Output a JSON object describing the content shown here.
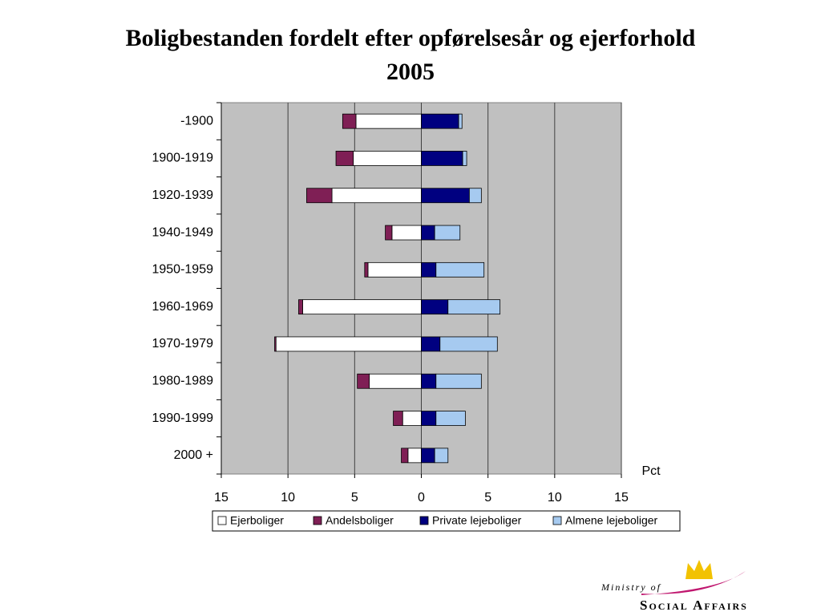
{
  "chart_data": {
    "type": "butterfly_bar",
    "title": "Boligbestanden fordelt efter opførelsesår og ejerforhold",
    "subtitle": "2005",
    "x_label": "Pct",
    "categories": [
      "-1900",
      "1900-1919",
      "1920-1939",
      "1940-1949",
      "1950-1959",
      "1960-1969",
      "1970-1979",
      "1980-1989",
      "1990-1999",
      "2000 +"
    ],
    "series": [
      {
        "name": "Ejerboliger",
        "color": "#ffffff",
        "values": [
          -4.9,
          -5.1,
          -6.7,
          -2.2,
          -4.0,
          -8.9,
          -10.9,
          -3.9,
          -1.4,
          -1.0
        ]
      },
      {
        "name": "Andelsboliger",
        "color": "#7f1f55",
        "values": [
          -1.0,
          -1.3,
          -1.9,
          -0.5,
          -0.25,
          -0.3,
          -0.1,
          -0.9,
          -0.7,
          -0.5
        ]
      },
      {
        "name": "Private lejeboliger",
        "color": "#000080",
        "values": [
          2.8,
          3.1,
          3.6,
          1.0,
          1.1,
          2.0,
          1.4,
          1.1,
          1.1,
          1.0
        ]
      },
      {
        "name": "Almene lejeboliger",
        "color": "#a6caf0",
        "values": [
          0.25,
          0.3,
          0.9,
          1.9,
          3.6,
          3.9,
          4.3,
          3.4,
          2.2,
          1.0
        ]
      }
    ],
    "xlim": [
      -15,
      15
    ],
    "xticks": [
      {
        "value": -15,
        "label": "15"
      },
      {
        "value": -10,
        "label": "10"
      },
      {
        "value": -5,
        "label": "5"
      },
      0,
      5,
      10,
      15
    ],
    "grid": true,
    "legend": "bottom",
    "logo": {
      "line1": "Ministry of",
      "line2": "Social Affairs"
    }
  }
}
